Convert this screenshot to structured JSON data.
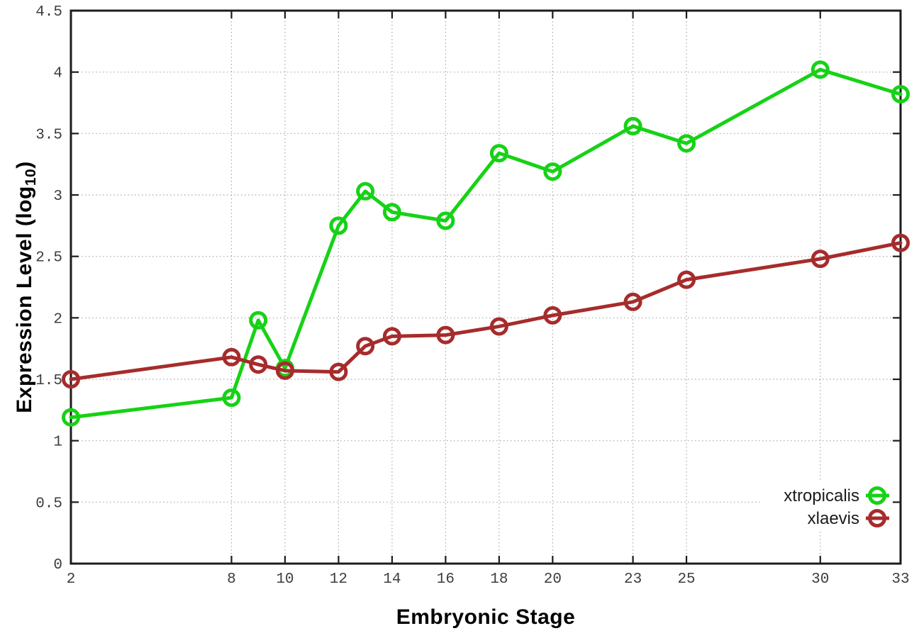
{
  "chart_data": {
    "type": "line",
    "title": "",
    "xlabel": "Embryonic Stage",
    "ylabel": "Expression Level (log10)",
    "ylabel_parts": {
      "pre": "Expression Level (log",
      "sub": "10",
      "post": ")"
    },
    "x": [
      2,
      8,
      9,
      10,
      12,
      13,
      14,
      16,
      18,
      20,
      23,
      25,
      30,
      33
    ],
    "xlim": [
      2,
      33
    ],
    "ylim": [
      0,
      4.5
    ],
    "x_ticks": [
      2,
      8,
      10,
      12,
      14,
      16,
      18,
      20,
      23,
      25,
      30,
      33
    ],
    "y_ticks": [
      0,
      0.5,
      1,
      1.5,
      2,
      2.5,
      3,
      3.5,
      4,
      4.5
    ],
    "y_tick_labels": [
      "0",
      "0.5",
      "1",
      "1.5",
      "2",
      "2.5",
      "3",
      "3.5",
      "4",
      "4.5"
    ],
    "grid": true,
    "grid_style": "dotted",
    "marker": "open-circle",
    "legend_position": "bottom-right",
    "series": [
      {
        "name": "xtropicalis",
        "color": "#16d216",
        "values": [
          1.19,
          1.35,
          1.98,
          1.59,
          2.75,
          3.03,
          2.86,
          2.79,
          3.34,
          3.19,
          3.56,
          3.42,
          4.02,
          3.82
        ]
      },
      {
        "name": "xlaevis",
        "color": "#a62c2c",
        "values": [
          1.5,
          1.68,
          1.62,
          1.57,
          1.56,
          1.77,
          1.85,
          1.86,
          1.93,
          2.02,
          2.13,
          2.31,
          2.48,
          2.61
        ]
      }
    ],
    "colors": {
      "background": "#ffffff",
      "border": "#1c1c1c",
      "grid": "#a8a8a8",
      "tick_label": "#3d3d3d",
      "axis_title": "#000000",
      "legend_text": "#1a1a1a"
    }
  }
}
